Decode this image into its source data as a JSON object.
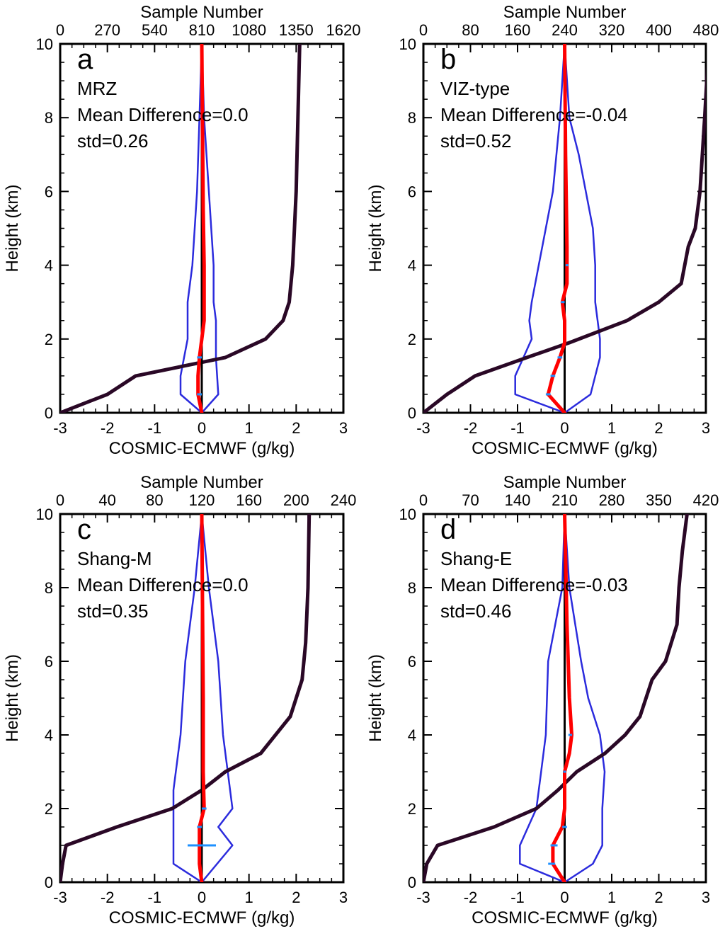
{
  "chart_data": [
    {
      "type": "line",
      "panel_label": "a",
      "annotations": [
        "MRZ",
        "Mean Difference=0.0",
        "std=0.26"
      ],
      "xlabel": "COSMIC-ECMWF (g/kg)",
      "ylabel": "Height (km)",
      "x2label": "Sample Number",
      "xlim": [
        -3,
        3
      ],
      "ylim": [
        0,
        10
      ],
      "x2lim": [
        0,
        1620
      ],
      "xticks": [
        "-3",
        "-2",
        "-1",
        "0",
        "1",
        "2",
        "3"
      ],
      "yticks": [
        "0",
        "2",
        "4",
        "6",
        "8",
        "10"
      ],
      "x2ticks": [
        "0",
        "270",
        "540",
        "810",
        "1080",
        "1350",
        "1620"
      ],
      "series": [
        {
          "role": "mean",
          "color": "#ff0000",
          "x": [
            0,
            -0.08,
            -0.08,
            -0.05,
            0.05,
            0.05,
            0.03,
            0.0
          ],
          "y": [
            0,
            0.5,
            1.0,
            1.5,
            2.5,
            4.0,
            5.5,
            10
          ]
        },
        {
          "role": "mean-minus-std",
          "color": "#2b2bdd",
          "x": [
            0,
            -0.45,
            -0.45,
            -0.3,
            -0.3,
            -0.2,
            -0.1,
            -0.05,
            0
          ],
          "y": [
            0,
            0.5,
            1.0,
            2.0,
            3.0,
            4.0,
            6.0,
            8.0,
            10
          ]
        },
        {
          "role": "mean-plus-std",
          "color": "#2b2bdd",
          "x": [
            0,
            0.35,
            0.3,
            0.3,
            0.25,
            0.25,
            0.15,
            0.05,
            0
          ],
          "y": [
            0,
            0.5,
            1.5,
            2.5,
            3.0,
            4.0,
            6.0,
            8.0,
            10
          ]
        },
        {
          "role": "sample-number",
          "color": "#2a0826",
          "axis": "top",
          "x": [
            0,
            270,
            432,
            945,
            1175,
            1275,
            1310,
            1330,
            1340,
            1350,
            1360,
            1370
          ],
          "y": [
            0,
            0.5,
            1.0,
            1.5,
            2.0,
            2.5,
            3.0,
            4.0,
            5.0,
            6.0,
            8.0,
            10
          ]
        },
        {
          "role": "zero-reference",
          "color": "#000000",
          "x": [
            0,
            0
          ],
          "y": [
            0,
            10
          ]
        }
      ],
      "error_bars": [
        {
          "y": 0.5,
          "x0": -0.1,
          "x1": 0.0
        },
        {
          "y": 1.5,
          "x0": -0.1,
          "x1": 0.0
        }
      ]
    },
    {
      "type": "line",
      "panel_label": "b",
      "annotations": [
        "VIZ-type",
        "Mean Difference=-0.04",
        "std=0.52"
      ],
      "xlabel": "COSMIC-ECMWF (g/kg)",
      "ylabel": "Height (km)",
      "x2label": "Sample Number",
      "xlim": [
        -3,
        3
      ],
      "ylim": [
        0,
        10
      ],
      "x2lim": [
        0,
        480
      ],
      "xticks": [
        "-3",
        "-2",
        "-1",
        "0",
        "1",
        "2",
        "3"
      ],
      "yticks": [
        "0",
        "2",
        "4",
        "6",
        "8",
        "10"
      ],
      "x2ticks": [
        "0",
        "80",
        "160",
        "240",
        "320",
        "400",
        "480"
      ],
      "series": [
        {
          "role": "mean",
          "color": "#ff0000",
          "x": [
            0,
            -0.35,
            -0.25,
            -0.1,
            0.0,
            0.0,
            -0.05,
            0.05,
            0.05,
            0.02,
            0.0
          ],
          "y": [
            0,
            0.5,
            1.0,
            1.5,
            1.9,
            2.5,
            3.0,
            3.5,
            4.5,
            7.0,
            10
          ]
        },
        {
          "role": "mean-minus-std",
          "color": "#2b2bdd",
          "x": [
            0,
            -1.05,
            -1.05,
            -0.7,
            -0.75,
            -0.7,
            -0.55,
            -0.4,
            -0.25,
            -0.1,
            0
          ],
          "y": [
            0,
            0.5,
            1.0,
            2.0,
            2.5,
            3.0,
            4.0,
            5.0,
            6.0,
            8.0,
            10
          ]
        },
        {
          "role": "mean-plus-std",
          "color": "#2b2bdd",
          "x": [
            0,
            0.55,
            0.75,
            0.75,
            0.65,
            0.65,
            0.6,
            0.45,
            0.3,
            0.1,
            0
          ],
          "y": [
            0,
            0.5,
            1.5,
            2.0,
            3.0,
            4.0,
            5.0,
            6.0,
            7.0,
            8.0,
            10
          ]
        },
        {
          "role": "sample-number",
          "color": "#2a0826",
          "axis": "top",
          "x": [
            0,
            40,
            88,
            176,
            248,
            346,
            400,
            438,
            450,
            462,
            470,
            478,
            485
          ],
          "y": [
            0,
            0.5,
            1.0,
            1.5,
            1.9,
            2.5,
            3.0,
            3.5,
            4.5,
            5.0,
            6.0,
            8.0,
            10
          ]
        },
        {
          "role": "zero-reference",
          "color": "#000000",
          "x": [
            0,
            0
          ],
          "y": [
            0,
            10
          ]
        }
      ],
      "error_bars": [
        {
          "y": 0.5,
          "x0": -0.4,
          "x1": -0.3
        },
        {
          "y": 1.0,
          "x0": -0.3,
          "x1": -0.2
        },
        {
          "y": 1.5,
          "x0": -0.15,
          "x1": -0.05
        },
        {
          "y": 3.0,
          "x0": -0.08,
          "x1": 0.0
        },
        {
          "y": 4.0,
          "x0": 0.02,
          "x1": 0.08
        }
      ]
    },
    {
      "type": "line",
      "panel_label": "c",
      "annotations": [
        "Shang-M",
        "Mean Difference=0.0",
        "std=0.35"
      ],
      "xlabel": "COSMIC-ECMWF (g/kg)",
      "ylabel": "Height (km)",
      "x2label": "Sample Number",
      "xlim": [
        -3,
        3
      ],
      "ylim": [
        0,
        10
      ],
      "x2lim": [
        0,
        240
      ],
      "xticks": [
        "-3",
        "-2",
        "-1",
        "0",
        "1",
        "2",
        "3"
      ],
      "yticks": [
        "0",
        "2",
        "4",
        "6",
        "8",
        "10"
      ],
      "x2ticks": [
        "0",
        "40",
        "80",
        "120",
        "160",
        "200",
        "240"
      ],
      "series": [
        {
          "role": "mean",
          "color": "#ff0000",
          "x": [
            0,
            -0.05,
            -0.05,
            -0.05,
            0.05,
            0.03,
            0.03,
            0.0
          ],
          "y": [
            0,
            0.5,
            1.0,
            1.5,
            2.0,
            3.0,
            5.0,
            10
          ]
        },
        {
          "role": "mean-minus-std",
          "color": "#2b2bdd",
          "x": [
            0,
            -0.6,
            -0.6,
            -0.6,
            -0.6,
            -0.45,
            -0.35,
            -0.15,
            0
          ],
          "y": [
            0,
            0.5,
            1.0,
            2.0,
            2.5,
            4.0,
            6.0,
            8.0,
            10
          ]
        },
        {
          "role": "mean-plus-std",
          "color": "#2b2bdd",
          "x": [
            0,
            0.65,
            0.35,
            0.65,
            0.6,
            0.45,
            0.35,
            0.15,
            0
          ],
          "y": [
            0,
            1.0,
            1.5,
            2.0,
            2.5,
            4.0,
            6.0,
            8.0,
            10
          ]
        },
        {
          "role": "sample-number",
          "color": "#2a0826",
          "axis": "top",
          "x": [
            0,
            2,
            5,
            48,
            95,
            120,
            140,
            170,
            195,
            205,
            208,
            210,
            211
          ],
          "y": [
            0,
            0.5,
            1.0,
            1.5,
            2.0,
            2.5,
            3.0,
            3.5,
            4.5,
            5.5,
            6.5,
            8.0,
            10
          ]
        },
        {
          "role": "zero-reference",
          "color": "#000000",
          "x": [
            0,
            0
          ],
          "y": [
            0,
            10
          ]
        }
      ],
      "error_bars": [
        {
          "y": 1.0,
          "x0": -0.3,
          "x1": 0.3
        },
        {
          "y": 1.5,
          "x0": -0.1,
          "x1": 0.0
        },
        {
          "y": 2.0,
          "x0": 0.0,
          "x1": 0.1
        }
      ]
    },
    {
      "type": "line",
      "panel_label": "d",
      "annotations": [
        "Shang-E",
        "Mean Difference=-0.03",
        "std=0.46"
      ],
      "xlabel": "COSMIC-ECMWF (g/kg)",
      "ylabel": "Height (km)",
      "x2label": "Sample Number",
      "xlim": [
        -3,
        3
      ],
      "ylim": [
        0,
        10
      ],
      "x2lim": [
        0,
        420
      ],
      "xticks": [
        "-3",
        "-2",
        "-1",
        "0",
        "1",
        "2",
        "3"
      ],
      "yticks": [
        "0",
        "2",
        "4",
        "6",
        "8",
        "10"
      ],
      "x2ticks": [
        "0",
        "70",
        "140",
        "210",
        "280",
        "350",
        "420"
      ],
      "series": [
        {
          "role": "mean",
          "color": "#ff0000",
          "x": [
            0,
            -0.25,
            -0.25,
            -0.05,
            0.0,
            0.0,
            0.1,
            0.15,
            0.1,
            0.05,
            0.0
          ],
          "y": [
            0,
            0.5,
            1.0,
            1.5,
            2.0,
            3.0,
            3.5,
            4.0,
            5.0,
            7.0,
            10
          ]
        },
        {
          "role": "mean-minus-std",
          "color": "#2b2bdd",
          "x": [
            0,
            -0.95,
            -0.95,
            -0.6,
            -0.5,
            -0.4,
            -0.35,
            -0.2,
            -0.05,
            0
          ],
          "y": [
            0,
            0.5,
            1.0,
            2.0,
            3.0,
            4.0,
            6.0,
            7.0,
            8.0,
            10
          ]
        },
        {
          "role": "mean-plus-std",
          "color": "#2b2bdd",
          "x": [
            0,
            0.6,
            0.8,
            0.8,
            0.85,
            0.75,
            0.5,
            0.35,
            0.1,
            0
          ],
          "y": [
            0,
            0.5,
            1.0,
            2.0,
            3.0,
            4.0,
            5.0,
            6.0,
            8.0,
            10
          ]
        },
        {
          "role": "sample-number",
          "color": "#2a0826",
          "axis": "top",
          "x": [
            0,
            5,
            21,
            105,
            168,
            200,
            228,
            270,
            300,
            322,
            340,
            360,
            377,
            380,
            385,
            392
          ],
          "y": [
            0,
            0.5,
            1.0,
            1.5,
            2.0,
            2.5,
            3.0,
            3.5,
            4.0,
            4.5,
            5.5,
            6.0,
            7.0,
            8.0,
            9.0,
            10
          ]
        },
        {
          "role": "zero-reference",
          "color": "#000000",
          "x": [
            0,
            0
          ],
          "y": [
            0,
            10
          ]
        }
      ],
      "error_bars": [
        {
          "y": 0.5,
          "x0": -0.35,
          "x1": -0.2
        },
        {
          "y": 1.0,
          "x0": -0.3,
          "x1": -0.15
        },
        {
          "y": 1.5,
          "x0": -0.05,
          "x1": 0.05
        },
        {
          "y": 3.0,
          "x0": -0.03,
          "x1": 0.03
        },
        {
          "y": 4.0,
          "x0": 0.08,
          "x1": 0.16
        }
      ]
    }
  ]
}
